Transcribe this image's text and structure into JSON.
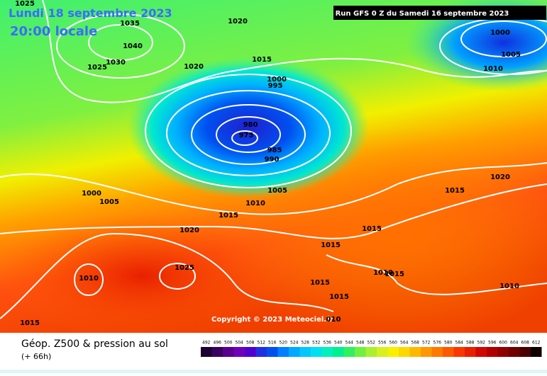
{
  "header": {
    "date": "Lundi 18 septembre 2023",
    "time": "20:00 locale",
    "run": "Run GFS 0 Z du Samedi 16 septembre 2023"
  },
  "copyright": "Copyright © 2023 Meteociel.fr",
  "isobar_labels": [
    "1025",
    "1035",
    "1040",
    "1020",
    "1030",
    "1025",
    "1020",
    "1015",
    "1000",
    "995",
    "1000",
    "1005",
    "1010",
    "980",
    "975",
    "985",
    "990",
    "1020",
    "1015",
    "1000",
    "1005",
    "1010",
    "1005",
    "1015",
    "1015",
    "1020",
    "1015",
    "1010",
    "1025",
    "1010",
    "1015",
    "1015",
    "1015",
    "1010",
    "1015",
    "010"
  ],
  "legend": {
    "title": "Géop. Z500 & pression au sol",
    "subtitle": "(+ 66h)",
    "values": [
      492,
      496,
      500,
      504,
      508,
      512,
      516,
      520,
      524,
      528,
      532,
      536,
      540,
      544,
      548,
      552,
      556,
      560,
      564,
      568,
      572,
      576,
      580,
      584,
      588,
      592,
      596,
      600,
      604,
      608,
      612
    ],
    "colors": [
      "#1a0030",
      "#3a0060",
      "#5a0090",
      "#7000b8",
      "#5000d0",
      "#2030e0",
      "#0050f0",
      "#0080ff",
      "#00a8ff",
      "#00c8ff",
      "#00e0f0",
      "#00f0c0",
      "#00f090",
      "#30f060",
      "#70f040",
      "#a8f030",
      "#d8f020",
      "#f8f000",
      "#ffd800",
      "#ffb800",
      "#ff9800",
      "#ff7800",
      "#ff5800",
      "#f83800",
      "#e82000",
      "#d00800",
      "#b00000",
      "#900000",
      "#700000",
      "#480000",
      "#100000"
    ]
  }
}
